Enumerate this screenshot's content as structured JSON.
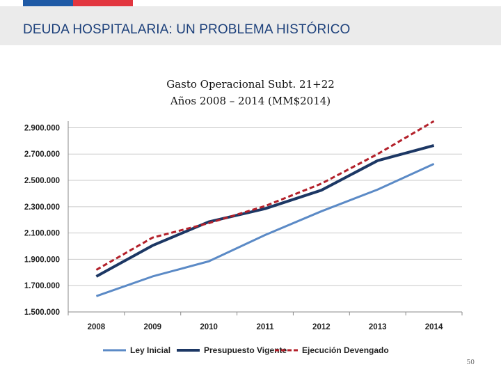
{
  "slide": {
    "title": "DEUDA HOSPITALARIA: UN PROBLEMA HISTÓRICO",
    "page_number": "50",
    "colors": {
      "flag_blue": "#1f5aa6",
      "flag_red": "#e2363f",
      "title": "#1b3f7a",
      "header_band": "#ebebeb"
    }
  },
  "chart_data": {
    "type": "line",
    "title": "Gasto Operacional Subt. 21+22",
    "subtitle": "Años 2008 – 2014 (MM$2014)",
    "xlabel": "",
    "ylabel": "",
    "categories": [
      "2008",
      "2009",
      "2010",
      "2011",
      "2012",
      "2013",
      "2014"
    ],
    "ylim": [
      1500000,
      2950000
    ],
    "yticks": [
      1500000,
      1700000,
      1900000,
      2100000,
      2300000,
      2500000,
      2700000,
      2900000
    ],
    "ytick_labels": [
      "1.500.000",
      "1.700.000",
      "1.900.000",
      "2.100.000",
      "2.300.000",
      "2.500.000",
      "2.700.000",
      "2.900.000"
    ],
    "grid": true,
    "legend_position": "bottom",
    "series": [
      {
        "name": "Ley Inicial",
        "color": "#5b8ac6",
        "style": "solid",
        "values": [
          1620000,
          1770000,
          1885000,
          2085000,
          2265000,
          2430000,
          2625000
        ]
      },
      {
        "name": "Presupuesto Vigente",
        "color": "#1c3764",
        "style": "solid",
        "values": [
          1770000,
          2005000,
          2185000,
          2285000,
          2425000,
          2650000,
          2765000
        ]
      },
      {
        "name": "Ejecución Devengado",
        "color": "#b3202a",
        "style": "dashed",
        "values": [
          1820000,
          2065000,
          2175000,
          2305000,
          2475000,
          2700000,
          2950000
        ]
      }
    ]
  }
}
